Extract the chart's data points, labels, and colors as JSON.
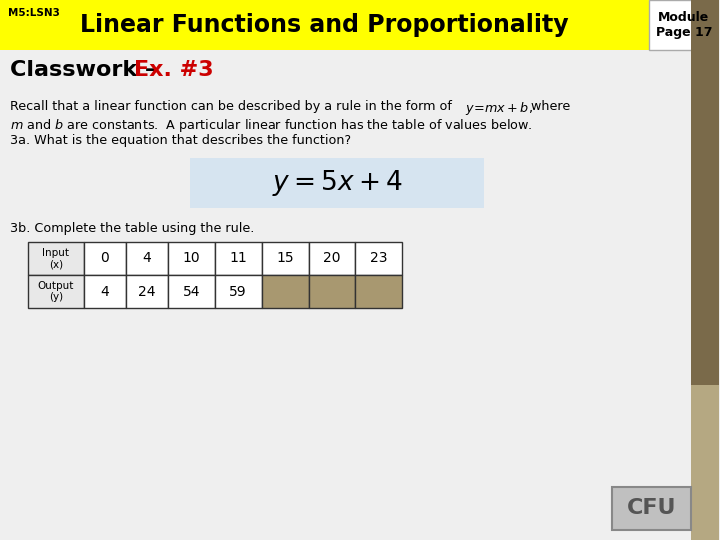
{
  "header_text": "Linear Functions and Proportionality",
  "header_prefix": "M5:LSN3",
  "header_bg": "#FFFF00",
  "header_fg": "#000000",
  "module_text": "Module\nPage 17",
  "sidebar_color": "#7A6A4A",
  "sidebar2_color": "#B5A882",
  "classwork_black": "Classwork – ",
  "classwork_red": "Ex. #3",
  "equation_bg": "#D6E4F0",
  "table_input_labels": [
    "Input\n(x)",
    "0",
    "4",
    "10",
    "11",
    "15",
    "20",
    "23"
  ],
  "table_output_labels": [
    "Output\n(y)",
    "4",
    "24",
    "54",
    "59",
    "",
    "",
    ""
  ],
  "table_empty_bg": "#A89870",
  "step3b": "3b. Complete the table using the rule.",
  "cfu_text": "CFU",
  "cfu_bg": "#C0C0C0",
  "bg_color": "#EFEFEF"
}
